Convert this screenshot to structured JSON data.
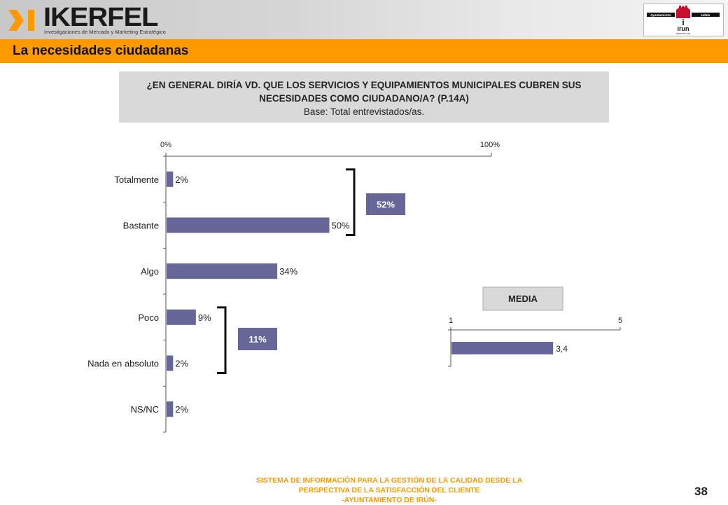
{
  "header": {
    "logo_name": "IKERFEL",
    "logo_tagline": "Investigaciones de Mercado y Marketing Estratégico",
    "city_logo": {
      "left_text": "Ayuntamiento",
      "right_text": "Udala",
      "name": "irun",
      "url": "www.irun.org"
    }
  },
  "page_title": "La necesidades ciudadanas",
  "question": {
    "text": "¿EN GENERAL DIRÍA VD. QUE LOS SERVICIOS Y EQUIPAMIENTOS MUNICIPALES CUBREN SUS NECESIDADES COMO CIUDADANO/A? (P.14A)",
    "base": "Base: Total entrevistados/as."
  },
  "chart_data": [
    {
      "type": "bar",
      "orientation": "horizontal",
      "categories": [
        "Totalmente",
        "Bastante",
        "Algo",
        "Poco",
        "Nada en absoluto",
        "NS/NC"
      ],
      "values": [
        2,
        50,
        34,
        9,
        2,
        2
      ],
      "value_labels": [
        "2%",
        "50%",
        "34%",
        "9%",
        "2%",
        "2%"
      ],
      "xlim": [
        0,
        100
      ],
      "x_tick_labels": [
        "0%",
        "100%"
      ],
      "x_axis_position": "top",
      "bar_color": "#666699",
      "groups": [
        {
          "label": "52%",
          "categories": [
            "Totalmente",
            "Bastante"
          ]
        },
        {
          "label": "11%",
          "categories": [
            "Poco",
            "Nada en absoluto"
          ]
        }
      ]
    },
    {
      "type": "bar",
      "orientation": "horizontal",
      "title": "MEDIA",
      "categories": [
        ""
      ],
      "values": [
        3.4
      ],
      "value_labels": [
        "3,4"
      ],
      "xlim": [
        1,
        5
      ],
      "x_tick_labels": [
        "1",
        "5"
      ],
      "x_axis_position": "top",
      "bar_color": "#666699"
    }
  ],
  "colors": {
    "accent": "#ff9900",
    "bar": "#666699",
    "label_box": "#666699",
    "question_bg": "#d9d9d9"
  },
  "footer": {
    "lines": [
      "SISTEMA DE INFORMACIÓN PARA LA GESTIÓN DE LA CALIDAD DESDE LA",
      "PERSPECTIVA DE LA SATISFACCIÓN DEL CLIENTE",
      "-AYUNTAMIENTO DE IRÚN-"
    ],
    "page_number": "38"
  }
}
